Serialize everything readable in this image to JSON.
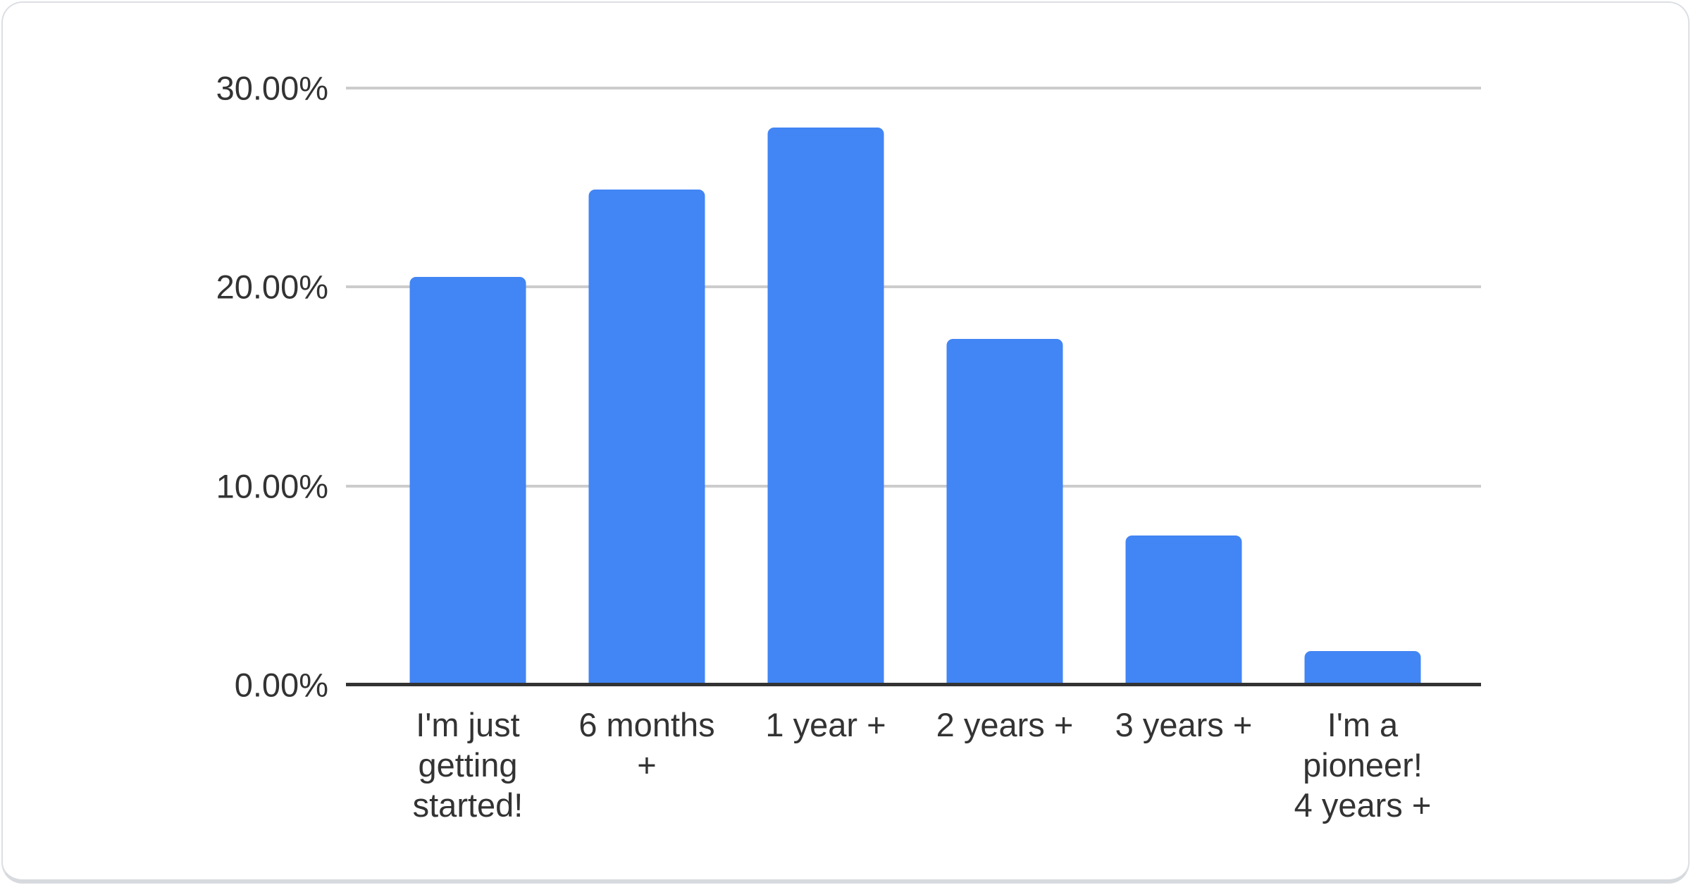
{
  "chart_data": {
    "type": "bar",
    "title": "",
    "categories": [
      "I'm just\ngetting\nstarted!",
      "6 months\n+",
      "1 year +",
      "2 years +",
      "3 years +",
      "I'm a\npioneer!\n4 years +"
    ],
    "values": [
      20.5,
      24.9,
      28.0,
      17.4,
      7.5,
      1.7
    ],
    "value_unit": "%",
    "ylim": [
      0,
      30
    ],
    "y_ticks": [
      {
        "value": 0,
        "label": "0.00%"
      },
      {
        "value": 10,
        "label": "10.00%"
      },
      {
        "value": 20,
        "label": "20.00%"
      },
      {
        "value": 30,
        "label": "30.00%"
      }
    ],
    "grid": true,
    "legend": "none",
    "colors": {
      "bar": "#4285F4",
      "gridline": "#CCCCCC",
      "axis_line": "#333333",
      "label_text": "#333333",
      "card_background": "#FFFFFF"
    }
  }
}
